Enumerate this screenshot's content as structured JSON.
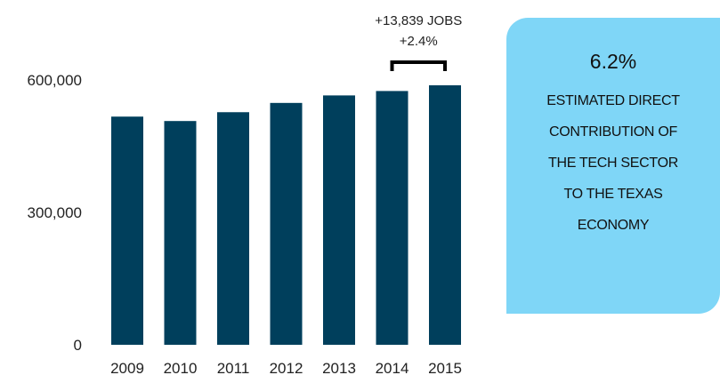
{
  "chart_data": {
    "type": "bar",
    "categories": [
      "2009",
      "2010",
      "2011",
      "2012",
      "2013",
      "2014",
      "2015"
    ],
    "values": [
      517000,
      507000,
      527000,
      548000,
      565000,
      575000,
      588000
    ],
    "ylim": [
      0,
      600000
    ],
    "yticks": [
      0,
      300000,
      600000
    ],
    "ytick_labels": [
      "0",
      "300,000",
      "600,000"
    ],
    "bar_color": "#003f5c",
    "grid": false,
    "annotation": {
      "from": "2014",
      "to": "2015",
      "line1": "+13,839 JOBS",
      "line2": "+2.4%"
    }
  },
  "callout": {
    "value": "6.2%",
    "lines": [
      "ESTIMATED DIRECT",
      "CONTRIBUTION OF",
      "THE TECH SECTOR",
      "TO THE TEXAS",
      "ECONOMY"
    ],
    "color": "#7fd6f7"
  }
}
